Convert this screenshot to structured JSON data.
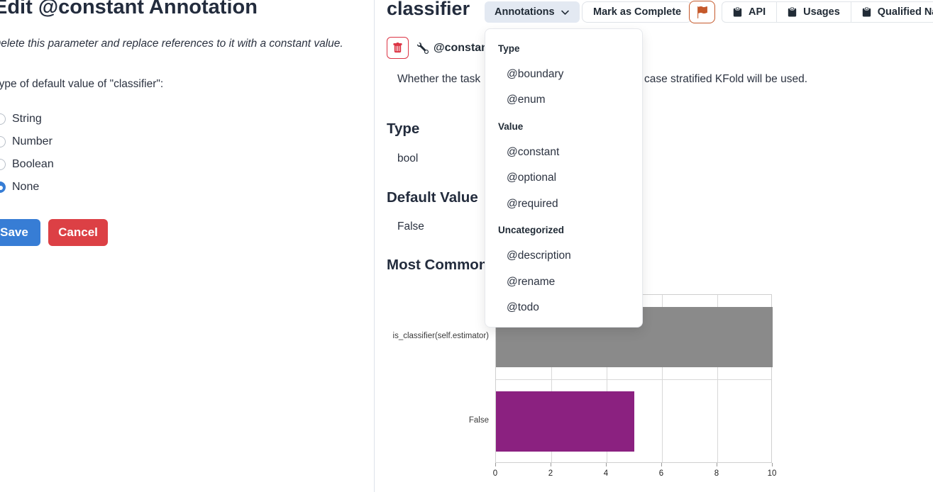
{
  "left_panel": {
    "title": "Edit @constant Annotation",
    "subtitle": "Delete this parameter and replace references to it with a constant value.",
    "type_label": "Type of default value of \"classifier\":",
    "radio_options": [
      {
        "label": "String",
        "selected": false
      },
      {
        "label": "Number",
        "selected": false
      },
      {
        "label": "Boolean",
        "selected": false
      },
      {
        "label": "None",
        "selected": true
      }
    ],
    "save_label": "Save",
    "cancel_label": "Cancel"
  },
  "right_panel": {
    "title": "classifier",
    "annotations_button_label": "Annotations",
    "mark_complete_label": "Mark as Complete",
    "copy_buttons": [
      "API",
      "Usages",
      "Qualified Name"
    ],
    "annotation_badge": "@constant",
    "description_visible_start": "Whether the task",
    "description_visible_end": "case stratified KFold will be used.",
    "type_heading": "Type",
    "type_value": "bool",
    "default_heading": "Default Value",
    "default_value": "False",
    "common_heading": "Most Common Values"
  },
  "dropdown_menu": {
    "groups": [
      {
        "header": "Type",
        "items": [
          "@boundary",
          "@enum"
        ]
      },
      {
        "header": "Value",
        "items": [
          "@constant",
          "@optional",
          "@required"
        ]
      },
      {
        "header": "Uncategorized",
        "items": [
          "@description",
          "@rename",
          "@todo"
        ]
      }
    ]
  },
  "chart_data": {
    "type": "bar",
    "orientation": "horizontal",
    "title": "",
    "xlabel": "",
    "ylabel": "",
    "categories": [
      "is_classifier(self.estimator)",
      "False"
    ],
    "values": [
      10,
      5
    ],
    "bar_colors": [
      "#8a8a8a",
      "#8b2180"
    ],
    "xlim": [
      0,
      10
    ],
    "xticks": [
      0,
      2,
      4,
      6,
      8,
      10
    ],
    "grid": true,
    "legend": false
  },
  "colors": {
    "accent_blue": "#377dd5",
    "danger_red": "#dc3545",
    "cancel_red": "#dc4045",
    "flag_orange": "#c5592b",
    "annotations_btn_bg": "#e3e9f2",
    "panel_divider": "#dde3ea",
    "bar_gray": "#8a8a8a",
    "bar_purple": "#8b2180"
  }
}
